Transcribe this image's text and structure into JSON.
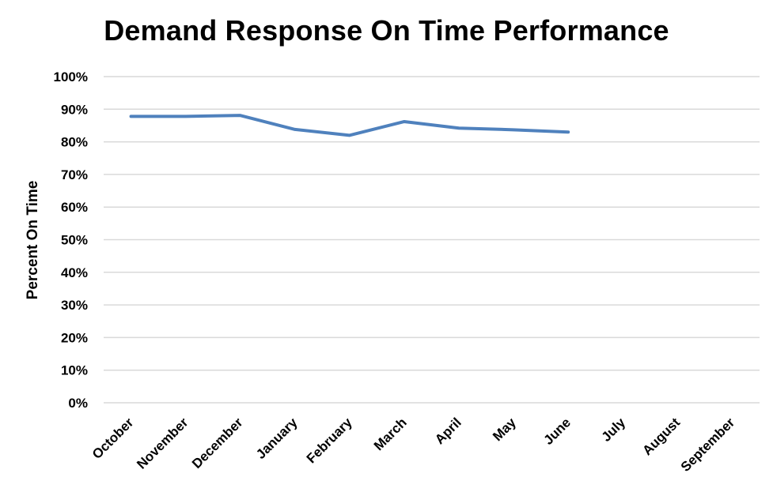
{
  "chart_data": {
    "type": "line",
    "title": "Demand Response On Time Performance",
    "xlabel": "",
    "ylabel": "Percent On Time",
    "categories": [
      "October",
      "November",
      "December",
      "January",
      "February",
      "March",
      "April",
      "May",
      "June",
      "July",
      "August",
      "September"
    ],
    "series": [
      {
        "values": [
          0.878,
          0.878,
          0.881,
          0.838,
          0.82,
          0.862,
          0.842,
          0.837,
          0.83,
          null,
          null,
          null
        ],
        "color": "#4f81bd"
      }
    ],
    "ylim": [
      0,
      1
    ],
    "yticks": [
      "0%",
      "10%",
      "20%",
      "30%",
      "40%",
      "50%",
      "60%",
      "70%",
      "80%",
      "90%",
      "100%"
    ],
    "grid": true,
    "legend": "none",
    "gridline_color": "#d9d9d9"
  }
}
